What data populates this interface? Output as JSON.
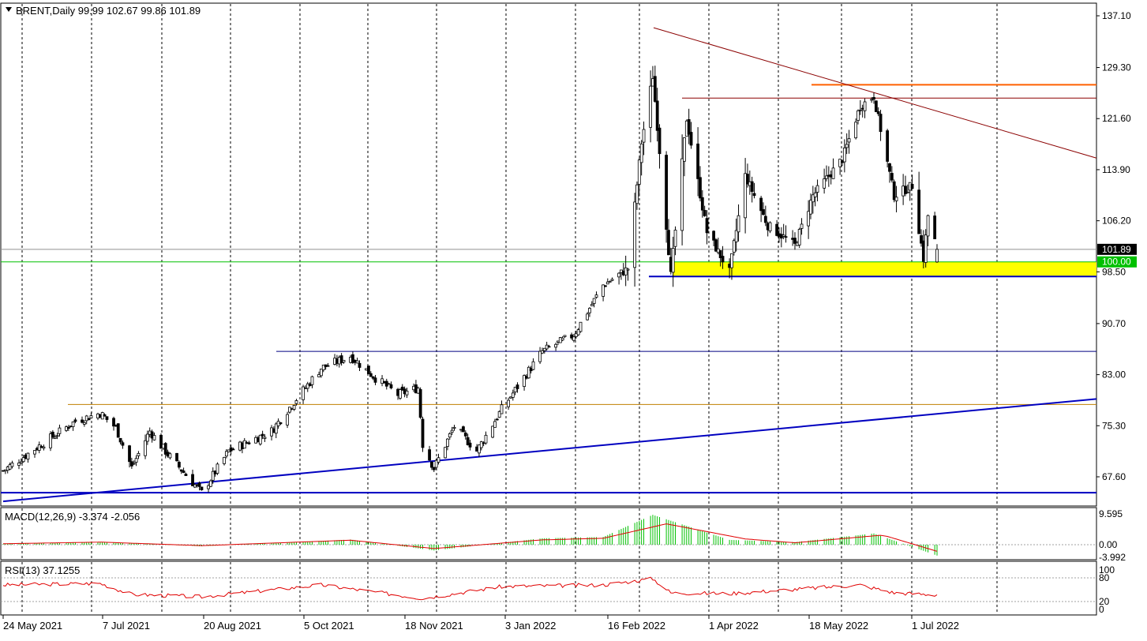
{
  "header": {
    "symbol_line": "BRENT,Daily  99.99 102.67 99.86 101.89"
  },
  "colors": {
    "background": "#ffffff",
    "grid": "#000000",
    "bull_candle": "#00a000",
    "bear_candle": "#000000",
    "trend_blue": "#0000c0",
    "resistance_brown": "#8b0000",
    "orange_line": "#ff6000",
    "level_green": "#00c000",
    "support_zone": "#ffff00",
    "macd_hist": "#00c000",
    "signal_red": "#e00000",
    "rsi_red": "#e00000"
  },
  "chart_data": [
    {
      "type": "candlestick",
      "title": "BRENT,Daily",
      "ohlc_last": {
        "open": 99.99,
        "high": 102.67,
        "low": 99.86,
        "close": 101.89
      },
      "ylim": [
        63.8,
        140.0
      ],
      "y_ticks": [
        "137.10",
        "129.30",
        "121.60",
        "113.90",
        "106.20",
        "98.50",
        "90.70",
        "83.00",
        "75.30",
        "67.60"
      ],
      "y_tick_values": [
        137.1,
        129.3,
        121.6,
        113.9,
        106.2,
        98.5,
        90.7,
        83.0,
        75.3,
        67.6
      ],
      "price_labels": [
        {
          "text": "101.89",
          "value": 101.89
        },
        {
          "text": "100.00",
          "value": 100.0
        }
      ],
      "x_labels": [
        "24 May 2021",
        "7 Jul 2021",
        "20 Aug 2021",
        "5 Oct 2021",
        "18 Nov 2021",
        "3 Jan 2022",
        "16 Feb 2022",
        "1 Apr 2022",
        "18 May 2022",
        "1 Jul 2022"
      ],
      "close_path": [
        {
          "date": "2021-05-24",
          "close": 68.5
        },
        {
          "date": "2021-06-10",
          "close": 72.5
        },
        {
          "date": "2021-06-25",
          "close": 76.0
        },
        {
          "date": "2021-07-06",
          "close": 77.2
        },
        {
          "date": "2021-07-13",
          "close": 75.0
        },
        {
          "date": "2021-07-20",
          "close": 69.0
        },
        {
          "date": "2021-07-28",
          "close": 74.5
        },
        {
          "date": "2021-08-05",
          "close": 71.0
        },
        {
          "date": "2021-08-20",
          "close": 65.2
        },
        {
          "date": "2021-09-01",
          "close": 71.5
        },
        {
          "date": "2021-09-20",
          "close": 74.5
        },
        {
          "date": "2021-09-29",
          "close": 78.5
        },
        {
          "date": "2021-10-12",
          "close": 84.0
        },
        {
          "date": "2021-10-25",
          "close": 85.8
        },
        {
          "date": "2021-11-05",
          "close": 82.5
        },
        {
          "date": "2021-11-15",
          "close": 80.0
        },
        {
          "date": "2021-11-24",
          "close": 81.0
        },
        {
          "date": "2021-11-26",
          "close": 72.5
        },
        {
          "date": "2021-12-01",
          "close": 68.9
        },
        {
          "date": "2021-12-10",
          "close": 75.2
        },
        {
          "date": "2021-12-20",
          "close": 71.5
        },
        {
          "date": "2021-12-31",
          "close": 77.8
        },
        {
          "date": "2022-01-18",
          "close": 86.5
        },
        {
          "date": "2022-02-01",
          "close": 89.0
        },
        {
          "date": "2022-02-14",
          "close": 96.5
        },
        {
          "date": "2022-02-25",
          "close": 99.0
        },
        {
          "date": "2022-03-03",
          "close": 118.0
        },
        {
          "date": "2022-03-08",
          "close": 128.0
        },
        {
          "date": "2022-03-16",
          "close": 98.0
        },
        {
          "date": "2022-03-23",
          "close": 121.6
        },
        {
          "date": "2022-04-01",
          "close": 104.5
        },
        {
          "date": "2022-04-11",
          "close": 98.5
        },
        {
          "date": "2022-04-18",
          "close": 113.0
        },
        {
          "date": "2022-04-28",
          "close": 105.5
        },
        {
          "date": "2022-05-10",
          "close": 102.5
        },
        {
          "date": "2022-05-18",
          "close": 110.0
        },
        {
          "date": "2022-05-31",
          "close": 115.5
        },
        {
          "date": "2022-06-08",
          "close": 123.5
        },
        {
          "date": "2022-06-14",
          "close": 125.0
        },
        {
          "date": "2022-06-23",
          "close": 110.0
        },
        {
          "date": "2022-07-01",
          "close": 111.5
        },
        {
          "date": "2022-07-06",
          "close": 100.5
        },
        {
          "date": "2022-07-08",
          "close": 107.0
        },
        {
          "date": "2022-07-12",
          "close": 101.89
        }
      ],
      "annotations": [
        {
          "name": "rising trendline",
          "color": "#0000c0",
          "from": {
            "date": "2021-05-24",
            "price": 63.9
          },
          "to": {
            "date": "2022-07-12",
            "price": 79.1
          }
        },
        {
          "name": "falling resistance line",
          "color": "#8b0000",
          "from": {
            "date": "2022-03-08",
            "price": 135.3
          },
          "to": {
            "date": "2022-07-12",
            "price": 116.6
          }
        },
        {
          "name": "orange horizontal",
          "color": "#ff6000",
          "price": 126.7
        },
        {
          "name": "brown horizontal",
          "color": "#8b0000",
          "price": 124.7
        },
        {
          "name": "horizontal 86.5",
          "color": "#000080",
          "price": 86.5
        },
        {
          "name": "horizontal 78.5",
          "color": "#c08000",
          "price": 78.5
        },
        {
          "name": "horizontal 65.2",
          "color": "#0000c0",
          "price": 65.2
        },
        {
          "name": "support zone",
          "color": "#ffff00",
          "price_range": [
            97.8,
            100.0
          ]
        },
        {
          "name": "support base line",
          "color": "#0000c0",
          "price": 97.8
        },
        {
          "name": "green level",
          "color": "#00c000",
          "price": 100.0
        },
        {
          "name": "grey current price",
          "color": "#909090",
          "price": 101.89
        }
      ]
    },
    {
      "type": "bar",
      "title": "MACD(12,26,9) -3.374 -2.056",
      "ylim": [
        -4.3,
        10.0
      ],
      "y_ticks": [
        "9.595",
        "0.00",
        "-3.992"
      ],
      "y_tick_values": [
        9.595,
        0.0,
        -3.992
      ],
      "macd_path": [
        {
          "date": "2021-05-24",
          "macd": 0.2
        },
        {
          "date": "2021-07-06",
          "macd": 0.8
        },
        {
          "date": "2021-08-20",
          "macd": -0.5
        },
        {
          "date": "2021-10-25",
          "macd": 1.6
        },
        {
          "date": "2021-12-01",
          "macd": -1.8
        },
        {
          "date": "2022-01-18",
          "macd": 2.0
        },
        {
          "date": "2022-02-14",
          "macd": 2.4
        },
        {
          "date": "2022-03-08",
          "macd": 9.3
        },
        {
          "date": "2022-04-11",
          "macd": 1.5
        },
        {
          "date": "2022-05-10",
          "macd": 0.8
        },
        {
          "date": "2022-06-14",
          "macd": 3.5
        },
        {
          "date": "2022-07-12",
          "macd": -3.374
        }
      ],
      "signal_path": [
        {
          "date": "2021-05-24",
          "signal": 0.3
        },
        {
          "date": "2021-07-06",
          "signal": 0.8
        },
        {
          "date": "2021-08-20",
          "signal": -0.3
        },
        {
          "date": "2021-10-25",
          "signal": 1.4
        },
        {
          "date": "2021-12-01",
          "signal": -1.2
        },
        {
          "date": "2022-01-18",
          "signal": 1.5
        },
        {
          "date": "2022-02-14",
          "signal": 2.0
        },
        {
          "date": "2022-03-14",
          "signal": 6.5
        },
        {
          "date": "2022-04-18",
          "signal": 1.8
        },
        {
          "date": "2022-05-10",
          "signal": 0.6
        },
        {
          "date": "2022-06-18",
          "signal": 3.0
        },
        {
          "date": "2022-07-12",
          "signal": -2.056
        }
      ]
    },
    {
      "type": "line",
      "title": "RSI(13) 37.1255",
      "ylim": [
        0,
        100
      ],
      "y_ticks": [
        "100",
        "80",
        "20",
        "0"
      ],
      "y_tick_values": [
        100,
        80,
        20,
        0
      ],
      "rsi_path": [
        {
          "date": "2021-05-24",
          "rsi": 62
        },
        {
          "date": "2021-07-06",
          "rsi": 66
        },
        {
          "date": "2021-07-20",
          "rsi": 38
        },
        {
          "date": "2021-08-20",
          "rsi": 32
        },
        {
          "date": "2021-10-12",
          "rsi": 62
        },
        {
          "date": "2021-11-26",
          "rsi": 28
        },
        {
          "date": "2021-12-31",
          "rsi": 58
        },
        {
          "date": "2022-02-14",
          "rsi": 62
        },
        {
          "date": "2022-03-08",
          "rsi": 78
        },
        {
          "date": "2022-03-16",
          "rsi": 42
        },
        {
          "date": "2022-04-11",
          "rsi": 40
        },
        {
          "date": "2022-06-08",
          "rsi": 62
        },
        {
          "date": "2022-06-23",
          "rsi": 42
        },
        {
          "date": "2022-07-12",
          "rsi": 37.1255
        }
      ]
    }
  ]
}
